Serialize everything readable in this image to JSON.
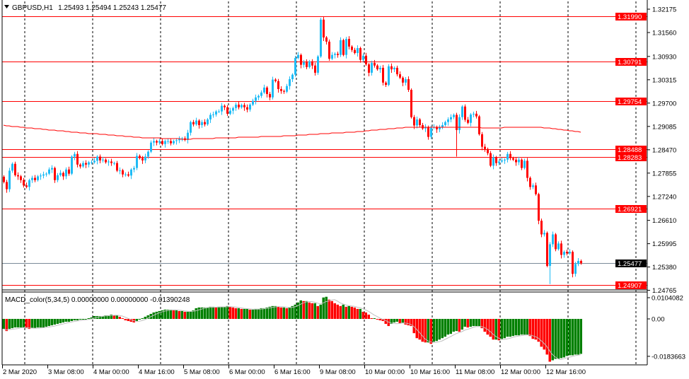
{
  "header": {
    "symbol": "GBPUSD,H1",
    "ohlc": "1.25493 1.25494 1.25243 1.25477",
    "menu_icon": "triangle-down-icon"
  },
  "macd_header": "MACD_color(5,34,5) 0.00000000 0.00000000 -0.01390248",
  "colors": {
    "bull": "#1EBBF5",
    "bear": "#FF0000",
    "level": "#FF0000",
    "ma": "#FF0000",
    "macd_up": "#008000",
    "macd_down": "#FF0000",
    "signal": "#C0C0C0",
    "current": "#7A8A99"
  },
  "chart_data": [
    {
      "type": "candlestick",
      "title": "GBPUSD,H1",
      "timeframe": "H1",
      "ylim": [
        1.2476,
        1.3217
      ],
      "y_ticks": [
        "1.32175",
        "1.31560",
        "1.30930",
        "1.30315",
        "1.29700",
        "1.29085",
        "1.28470",
        "1.27855",
        "1.27240",
        "1.26610",
        "1.25995",
        "1.25380",
        "1.24765"
      ],
      "x_tick_labels": [
        "2 Mar 2020",
        "3 Mar 08:00",
        "4 Mar 00:00",
        "4 Mar 16:00",
        "5 Mar 08:00",
        "6 Mar 00:00",
        "6 Mar 16:00",
        "9 Mar 08:00",
        "10 Mar 00:00",
        "10 Mar 16:00",
        "11 Mar 08:00",
        "12 Mar 00:00",
        "12 Mar 16:00"
      ],
      "bars_per_x_label": 16,
      "bars_per_day_separator": 24,
      "first_open": 1.2776,
      "closes": [
        1.2762,
        1.2743,
        1.2792,
        1.281,
        1.278,
        1.2777,
        1.2767,
        1.2753,
        1.2749,
        1.2767,
        1.2773,
        1.2767,
        1.2777,
        1.2779,
        1.2782,
        1.2784,
        1.2795,
        1.2799,
        1.2767,
        1.278,
        1.2786,
        1.2777,
        1.2795,
        1.2784,
        1.2829,
        1.2836,
        1.2808,
        1.2803,
        1.2812,
        1.2808,
        1.2814,
        1.2814,
        1.2818,
        1.2829,
        1.2819,
        1.2821,
        1.2814,
        1.2816,
        1.2812,
        1.2812,
        1.2792,
        1.2793,
        1.2782,
        1.2782,
        1.2779,
        1.2795,
        1.2799,
        1.2831,
        1.2825,
        1.2819,
        1.2829,
        1.2842,
        1.2866,
        1.287,
        1.2866,
        1.287,
        1.2862,
        1.287,
        1.287,
        1.2864,
        1.287,
        1.2872,
        1.2875,
        1.2877,
        1.2873,
        1.2892,
        1.292,
        1.2914,
        1.2924,
        1.2912,
        1.292,
        1.2914,
        1.2927,
        1.2939,
        1.294,
        1.2948,
        1.2948,
        1.2963,
        1.2959,
        1.2942,
        1.295,
        1.2957,
        1.2966,
        1.2959,
        1.2965,
        1.2959,
        1.2953,
        1.2966,
        1.2976,
        1.2985,
        1.2989,
        1.2998,
        1.3011,
        1.2994,
        1.2985,
        1.3032,
        1.3028,
        1.3007,
        1.3002,
        1.3,
        1.3015,
        1.3033,
        1.3045,
        1.3089,
        1.3097,
        1.3071,
        1.3078,
        1.3065,
        1.308,
        1.3069,
        1.305,
        1.3093,
        1.319,
        1.3143,
        1.3132,
        1.3087,
        1.3097,
        1.31,
        1.3097,
        1.3136,
        1.3097,
        1.3139,
        1.3119,
        1.311,
        1.3102,
        1.3115,
        1.3084,
        1.3095,
        1.3072,
        1.305,
        1.3076,
        1.3069,
        1.3059,
        1.3063,
        1.3024,
        1.3018,
        1.3067,
        1.3059,
        1.3063,
        1.3046,
        1.3037,
        1.3024,
        1.3033,
        1.3005,
        1.2933,
        1.2911,
        1.2927,
        1.2912,
        1.2903,
        1.2907,
        1.2881,
        1.2905,
        1.2907,
        1.2901,
        1.2907,
        1.2912,
        1.292,
        1.2927,
        1.2933,
        1.2939,
        1.2899,
        1.2933,
        1.2961,
        1.2926,
        1.2918,
        1.294,
        1.2942,
        1.2935,
        1.2888,
        1.2855,
        1.2849,
        1.2838,
        1.2805,
        1.2827,
        1.2812,
        1.2816,
        1.2819,
        1.2821,
        1.2836,
        1.2825,
        1.2821,
        1.2814,
        1.2821,
        1.2799,
        1.2818,
        1.2773,
        1.2749,
        1.2753,
        1.273,
        1.266,
        1.2624,
        1.2628,
        1.2541,
        1.2598,
        1.2624,
        1.2585,
        1.26,
        1.257,
        1.2578,
        1.2574,
        1.2578,
        1.252,
        1.2546,
        1.2554,
        1.25477
      ],
      "notable_wicks": [
        {
          "bar": 112,
          "high": 1.3195
        },
        {
          "bar": 160,
          "low": 1.2829
        },
        {
          "bar": 193,
          "low": 1.2493
        }
      ],
      "moving_average": [
        [
          0,
          1.2911
        ],
        [
          24,
          1.2894
        ],
        [
          49,
          1.2879
        ],
        [
          64,
          1.2875
        ],
        [
          99,
          1.2883
        ],
        [
          124,
          1.2894
        ],
        [
          144,
          1.2907
        ],
        [
          174,
          1.2905
        ],
        [
          189,
          1.2907
        ],
        [
          204,
          1.2894
        ]
      ],
      "levels": [
        "1.31990",
        "1.30791",
        "1.29754",
        "1.28488",
        "1.28283",
        "1.26921",
        "1.24907"
      ],
      "current_price": "1.25477"
    },
    {
      "type": "bar",
      "title": "MACD_color(5,34,5)",
      "ylim": [
        -0.0183663,
        0.0104082
      ],
      "y_ticks": [
        "0.0104082",
        "0.00",
        "-0.0183663"
      ],
      "histogram": [
        -0.0049,
        -0.00595,
        -0.0049,
        -0.00455,
        -0.0042,
        -0.0042,
        -0.0042,
        -0.0042,
        -0.00455,
        -0.0049,
        -0.00455,
        -0.00455,
        -0.0042,
        -0.0042,
        -0.0042,
        -0.00385,
        -0.0035,
        -0.00315,
        -0.0028,
        -0.00245,
        -0.0021,
        -0.00175,
        -0.0014,
        -0.0014,
        -0.00105,
        -0.0007,
        -0.0007,
        -0.00035,
        -0.00035,
        -0.00035,
        0.00035,
        0.0007,
        0.0014,
        0.0014,
        0.0014,
        0.0014,
        0.00175,
        0.00175,
        0.0021,
        0.00175,
        0.00175,
        0.00105,
        0.00035,
        -0.0007,
        -0.00105,
        -0.0014,
        -0.00175,
        -0.00105,
        -0.00035,
        0.00035,
        0.00105,
        0.00175,
        0.00245,
        0.00315,
        0.0035,
        0.00385,
        0.0042,
        0.00455,
        0.00455,
        0.00455,
        0.0042,
        0.0042,
        0.00385,
        0.00385,
        0.0035,
        0.0035,
        0.0035,
        0.0042,
        0.00525,
        0.0056,
        0.0056,
        0.0056,
        0.0056,
        0.00595,
        0.00595,
        0.0056,
        0.00595,
        0.00595,
        0.00595,
        0.0063,
        0.00595,
        0.0056,
        0.00525,
        0.00525,
        0.0049,
        0.0049,
        0.0049,
        0.00455,
        0.00455,
        0.0049,
        0.0049,
        0.00525,
        0.00525,
        0.0056,
        0.00595,
        0.0063,
        0.0063,
        0.00595,
        0.0056,
        0.0056,
        0.00525,
        0.0056,
        0.0063,
        0.007,
        0.00805,
        0.0091,
        0.00875,
        0.00875,
        0.00805,
        0.0077,
        0.0077,
        0.0063,
        0.007,
        0.0105,
        0.01085,
        0.00945,
        0.00875,
        0.0077,
        0.007,
        0.0063,
        0.007,
        0.00595,
        0.0063,
        0.00595,
        0.0056,
        0.0049,
        0.0049,
        0.0035,
        0.00315,
        0.0021,
        0.00035,
        0.00035,
        0,
        -0.0007,
        -0.00105,
        -0.00245,
        -0.0035,
        -0.00245,
        -0.00175,
        -0.0014,
        -0.0021,
        -0.0021,
        -0.0028,
        -0.00315,
        -0.0035,
        -0.007,
        -0.00945,
        -0.01015,
        -0.0112,
        -0.01155,
        -0.01155,
        -0.01225,
        -0.0112,
        -0.01085,
        -0.01015,
        -0.00945,
        -0.00875,
        -0.0077,
        -0.00735,
        -0.0063,
        -0.00595,
        -0.0063,
        -0.00525,
        -0.00385,
        -0.0042,
        -0.00385,
        -0.0035,
        -0.0035,
        -0.0035,
        -0.00455,
        -0.0063,
        -0.0077,
        -0.00875,
        -0.01015,
        -0.01015,
        -0.0105,
        -0.01015,
        -0.00945,
        -0.00875,
        -0.00875,
        -0.0084,
        -0.00805,
        -0.00805,
        -0.0077,
        -0.0077,
        -0.0077,
        -0.0084,
        -0.0098,
        -0.01015,
        -0.0112,
        -0.01365,
        -0.01505,
        -0.0175,
        -0.021,
        -0.0203,
        -0.0196,
        -0.0196,
        -0.01925,
        -0.0189,
        -0.0182,
        -0.01785,
        -0.01785,
        -0.0175,
        -0.0175,
        -0.01715
      ],
      "signal_period": 5
    }
  ]
}
